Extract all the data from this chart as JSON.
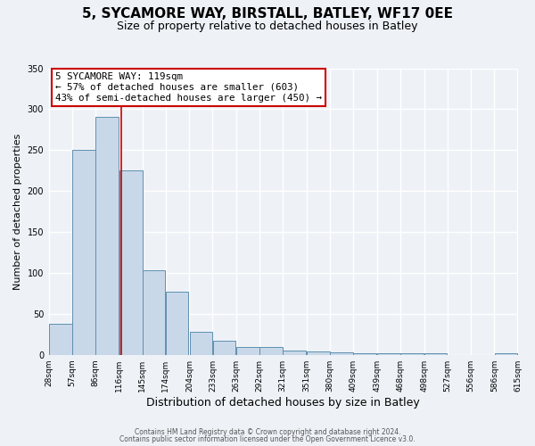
{
  "title1": "5, SYCAMORE WAY, BIRSTALL, BATLEY, WF17 0EE",
  "title2": "Size of property relative to detached houses in Batley",
  "xlabel": "Distribution of detached houses by size in Batley",
  "ylabel": "Number of detached properties",
  "bar_left_edges": [
    28,
    57,
    86,
    116,
    145,
    174,
    204,
    233,
    263,
    292,
    321,
    351,
    380,
    409,
    439,
    468,
    498,
    527,
    556,
    586
  ],
  "bar_heights": [
    38,
    250,
    291,
    225,
    103,
    77,
    28,
    17,
    10,
    9,
    5,
    4,
    3,
    2,
    2,
    2,
    2,
    0,
    0,
    2
  ],
  "bin_width": 29,
  "bar_color": "#c8d8e8",
  "bar_edge_color": "#6090b0",
  "tick_labels": [
    "28sqm",
    "57sqm",
    "86sqm",
    "116sqm",
    "145sqm",
    "174sqm",
    "204sqm",
    "233sqm",
    "263sqm",
    "292sqm",
    "321sqm",
    "351sqm",
    "380sqm",
    "409sqm",
    "439sqm",
    "468sqm",
    "498sqm",
    "527sqm",
    "556sqm",
    "586sqm",
    "615sqm"
  ],
  "vline_x": 119,
  "vline_color": "#cc0000",
  "ylim": [
    0,
    350
  ],
  "yticks": [
    0,
    50,
    100,
    150,
    200,
    250,
    300,
    350
  ],
  "annotation_text": "5 SYCAMORE WAY: 119sqm\n← 57% of detached houses are smaller (603)\n43% of semi-detached houses are larger (450) →",
  "annotation_box_color": "#ffffff",
  "annotation_box_edge": "#cc0000",
  "footer1": "Contains HM Land Registry data © Crown copyright and database right 2024.",
  "footer2": "Contains public sector information licensed under the Open Government Licence v3.0.",
  "background_color": "#eef2f7",
  "grid_color": "#ffffff",
  "title1_fontsize": 11,
  "title2_fontsize": 9,
  "xlabel_fontsize": 9,
  "ylabel_fontsize": 8,
  "tick_fontsize": 6.5,
  "footer_fontsize": 5.5,
  "annotation_fontsize": 7.8
}
